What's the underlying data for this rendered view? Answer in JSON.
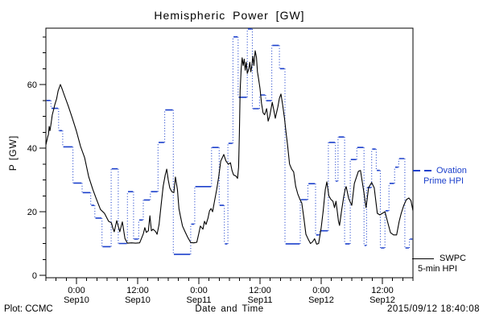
{
  "header": {
    "title": "Hemispheric Power [GW]"
  },
  "footer": {
    "credit": "Plot: CCMC",
    "xlabel": "Date and Time",
    "timestamp": "2015/09/12 18:40:08"
  },
  "legend": {
    "ovation": {
      "line1": "Ovation",
      "line2": "Prime HPI",
      "color": "#1d41cc"
    },
    "swpc": {
      "line1": "SWPC",
      "line2": "5-min HPI",
      "color": "#000000"
    }
  },
  "chart_data": {
    "type": "line",
    "title": "Hemispheric Power [GW]",
    "xlabel": "Date and Time",
    "ylabel": "P [GW]",
    "ylim": [
      0,
      78
    ],
    "y_major_ticks": [
      0,
      20,
      40,
      60
    ],
    "y_minor_step": 5,
    "x_hours_range": [
      0,
      72
    ],
    "x_minor_step_hours": 2,
    "x_major_ticks": [
      {
        "t": 6,
        "time": "0:00",
        "date": "Sep10"
      },
      {
        "t": 18,
        "time": "12:00",
        "date": "Sep10"
      },
      {
        "t": 30,
        "time": "0:00",
        "date": "Sep11"
      },
      {
        "t": 42,
        "time": "12:00",
        "date": "Sep11"
      },
      {
        "t": 54,
        "time": "0:00",
        "date": "Sep12"
      },
      {
        "t": 66,
        "time": "12:00",
        "date": "Sep12"
      }
    ],
    "grid": false,
    "legend_position": "right-outside",
    "series": [
      {
        "name": "Ovation Prime HPI",
        "style": "steps-dotted-connectors",
        "color": "#1d41cc",
        "unit": "GW",
        "points": [
          [
            0,
            55
          ],
          [
            1,
            52.5
          ],
          [
            2.5,
            45.5
          ],
          [
            3.3,
            40.4
          ],
          [
            5.3,
            29
          ],
          [
            7.1,
            26
          ],
          [
            8.8,
            22
          ],
          [
            9.6,
            18
          ],
          [
            11,
            9
          ],
          [
            12.8,
            33.5
          ],
          [
            14.2,
            10
          ],
          [
            16,
            26.3
          ],
          [
            17.2,
            11.4
          ],
          [
            18.2,
            17.4
          ],
          [
            19.1,
            23.7
          ],
          [
            20.5,
            26.3
          ],
          [
            22,
            41.8
          ],
          [
            23.3,
            52
          ],
          [
            25,
            6.6
          ],
          [
            28.4,
            16.1
          ],
          [
            29.2,
            27.9
          ],
          [
            32.5,
            40.2
          ],
          [
            34,
            22
          ],
          [
            35,
            9.9
          ],
          [
            35.7,
            41.5
          ],
          [
            36.7,
            75
          ],
          [
            37.7,
            56
          ],
          [
            39.5,
            77.5
          ],
          [
            40.5,
            52.4
          ],
          [
            41.9,
            56.7
          ],
          [
            43.1,
            54.9
          ],
          [
            44.3,
            72.3
          ],
          [
            45.8,
            65
          ],
          [
            46.9,
            9.9
          ],
          [
            49.9,
            23.8
          ],
          [
            51.4,
            28.8
          ],
          [
            52.9,
            12.7
          ],
          [
            53.7,
            14
          ],
          [
            55.4,
            41.8
          ],
          [
            56.8,
            29.6
          ],
          [
            57.3,
            43.5
          ],
          [
            58.6,
            9.9
          ],
          [
            59.7,
            36.4
          ],
          [
            61,
            40.2
          ],
          [
            62.4,
            9.4
          ],
          [
            62.9,
            27.6
          ],
          [
            63.9,
            39.7
          ],
          [
            64.8,
            33
          ],
          [
            65.6,
            8.6
          ],
          [
            66.5,
            20.3
          ],
          [
            67.3,
            28.9
          ],
          [
            68.4,
            34
          ],
          [
            69.2,
            36.7
          ],
          [
            70.4,
            8.6
          ],
          [
            71.3,
            11.4
          ]
        ],
        "t_end": 72
      },
      {
        "name": "SWPC 5-min HPI",
        "style": "solid",
        "color": "#000000",
        "unit": "GW",
        "points": [
          [
            0,
            41
          ],
          [
            0.35,
            43.5
          ],
          [
            0.5,
            44.3
          ],
          [
            0.65,
            46.8
          ],
          [
            0.8,
            45.5
          ],
          [
            1,
            47.5
          ],
          [
            1.25,
            50.4
          ],
          [
            1.5,
            52
          ],
          [
            1.75,
            53.7
          ],
          [
            2.1,
            55.5
          ],
          [
            2.4,
            58
          ],
          [
            2.85,
            60
          ],
          [
            3.1,
            59
          ],
          [
            3.6,
            56.7
          ],
          [
            4.4,
            53.2
          ],
          [
            5.2,
            49.4
          ],
          [
            6,
            45.3
          ],
          [
            6.8,
            40.5
          ],
          [
            7.6,
            37
          ],
          [
            8.4,
            31
          ],
          [
            9.2,
            27
          ],
          [
            9.9,
            24
          ],
          [
            10.7,
            20.7
          ],
          [
            11.5,
            19.5
          ],
          [
            12.3,
            17
          ],
          [
            12.85,
            16.5
          ],
          [
            13.1,
            15
          ],
          [
            13.4,
            13.7
          ],
          [
            13.9,
            17.2
          ],
          [
            14.5,
            13.7
          ],
          [
            15,
            16.8
          ],
          [
            15.5,
            11.6
          ],
          [
            16,
            10.1
          ],
          [
            16.8,
            10.2
          ],
          [
            17.6,
            10.1
          ],
          [
            18.4,
            10.2
          ],
          [
            19.1,
            13
          ],
          [
            19.4,
            15
          ],
          [
            19.7,
            13.5
          ],
          [
            20.1,
            14
          ],
          [
            20.4,
            18.7
          ],
          [
            20.7,
            14
          ],
          [
            21,
            14.5
          ],
          [
            21.5,
            13.8
          ],
          [
            21.8,
            12.9
          ],
          [
            22.2,
            16
          ],
          [
            22.6,
            22
          ],
          [
            23,
            28
          ],
          [
            23.4,
            31.5
          ],
          [
            23.7,
            33.4
          ],
          [
            24,
            30
          ],
          [
            24.3,
            27.5
          ],
          [
            24.7,
            26.3
          ],
          [
            25.1,
            26
          ],
          [
            25.4,
            30.9
          ],
          [
            25.8,
            27
          ],
          [
            26.1,
            21
          ],
          [
            26.4,
            18.5
          ],
          [
            26.8,
            15.5
          ],
          [
            27.3,
            13.7
          ],
          [
            27.8,
            12
          ],
          [
            28.4,
            10.3
          ],
          [
            29,
            10.2
          ],
          [
            29.6,
            10.4
          ],
          [
            30,
            13.2
          ],
          [
            30.3,
            15.5
          ],
          [
            30.8,
            14.5
          ],
          [
            31.1,
            17
          ],
          [
            31.4,
            16
          ],
          [
            31.8,
            18
          ],
          [
            32.1,
            20.3
          ],
          [
            32.4,
            21
          ],
          [
            32.7,
            20
          ],
          [
            33.1,
            23.5
          ],
          [
            33.5,
            27
          ],
          [
            33.9,
            31
          ],
          [
            34.3,
            35.9
          ],
          [
            34.9,
            38
          ],
          [
            35.3,
            36
          ],
          [
            35.8,
            34.9
          ],
          [
            36.2,
            35.4
          ],
          [
            36.5,
            33
          ],
          [
            36.8,
            31.6
          ],
          [
            37.3,
            31.2
          ],
          [
            37.6,
            30.5
          ],
          [
            37.8,
            34
          ],
          [
            37.95,
            45
          ],
          [
            38.1,
            58
          ],
          [
            38.3,
            65
          ],
          [
            38.5,
            68.4
          ],
          [
            38.7,
            66
          ],
          [
            38.9,
            68
          ],
          [
            39.1,
            64.5
          ],
          [
            39.3,
            67
          ],
          [
            39.5,
            63.5
          ],
          [
            39.8,
            65
          ],
          [
            40,
            67
          ],
          [
            40.2,
            64
          ],
          [
            40.4,
            66
          ],
          [
            40.6,
            68.9
          ],
          [
            40.8,
            66
          ],
          [
            41.05,
            70.6
          ],
          [
            41.3,
            68.5
          ],
          [
            41.5,
            64
          ],
          [
            41.7,
            62
          ],
          [
            42,
            58.7
          ],
          [
            42.3,
            54
          ],
          [
            42.6,
            51.1
          ],
          [
            42.9,
            50.5
          ],
          [
            43.3,
            52.4
          ],
          [
            43.6,
            48.5
          ],
          [
            43.9,
            50
          ],
          [
            44.4,
            54.4
          ],
          [
            44.7,
            52
          ],
          [
            45,
            49.4
          ],
          [
            45.5,
            53
          ],
          [
            45.8,
            55.7
          ],
          [
            46.1,
            57
          ],
          [
            46.4,
            54
          ],
          [
            46.8,
            49.4
          ],
          [
            47.1,
            45
          ],
          [
            47.4,
            41
          ],
          [
            47.8,
            35
          ],
          [
            48.2,
            33.4
          ],
          [
            48.6,
            32.5
          ],
          [
            49,
            28
          ],
          [
            49.4,
            25.6
          ],
          [
            49.8,
            24
          ],
          [
            50.2,
            22.7
          ],
          [
            50.6,
            18
          ],
          [
            51,
            12.9
          ],
          [
            51.5,
            11.2
          ],
          [
            51.9,
            10
          ],
          [
            52.3,
            10.5
          ],
          [
            52.7,
            11.5
          ],
          [
            53.1,
            9.8
          ],
          [
            53.5,
            10
          ],
          [
            54,
            15
          ],
          [
            54.4,
            20.3
          ],
          [
            54.8,
            27
          ],
          [
            55.1,
            29.4
          ],
          [
            55.5,
            25
          ],
          [
            55.9,
            23.9
          ],
          [
            56.3,
            23.3
          ],
          [
            56.6,
            21.3
          ],
          [
            56.9,
            23.3
          ],
          [
            57.4,
            17
          ],
          [
            57.6,
            15.7
          ],
          [
            58,
            20.3
          ],
          [
            58.4,
            24.6
          ],
          [
            58.7,
            27.1
          ],
          [
            58.9,
            27.9
          ],
          [
            59.4,
            24.1
          ],
          [
            60,
            22
          ],
          [
            60.5,
            28.9
          ],
          [
            61.3,
            32.7
          ],
          [
            61.7,
            33
          ],
          [
            62.4,
            25.8
          ],
          [
            62.8,
            21.3
          ],
          [
            63.3,
            27.6
          ],
          [
            63.9,
            29.2
          ],
          [
            64.4,
            27.5
          ],
          [
            65,
            19.5
          ],
          [
            65.5,
            19
          ],
          [
            66,
            19.5
          ],
          [
            66.5,
            20
          ],
          [
            67,
            17
          ],
          [
            67.6,
            13.4
          ],
          [
            68.2,
            12.7
          ],
          [
            68.8,
            12.7
          ],
          [
            69.3,
            17
          ],
          [
            69.7,
            19.5
          ],
          [
            70.2,
            22
          ],
          [
            70.7,
            23.8
          ],
          [
            71.2,
            24.3
          ],
          [
            71.6,
            23.5
          ],
          [
            72,
            20.3
          ]
        ]
      }
    ]
  }
}
